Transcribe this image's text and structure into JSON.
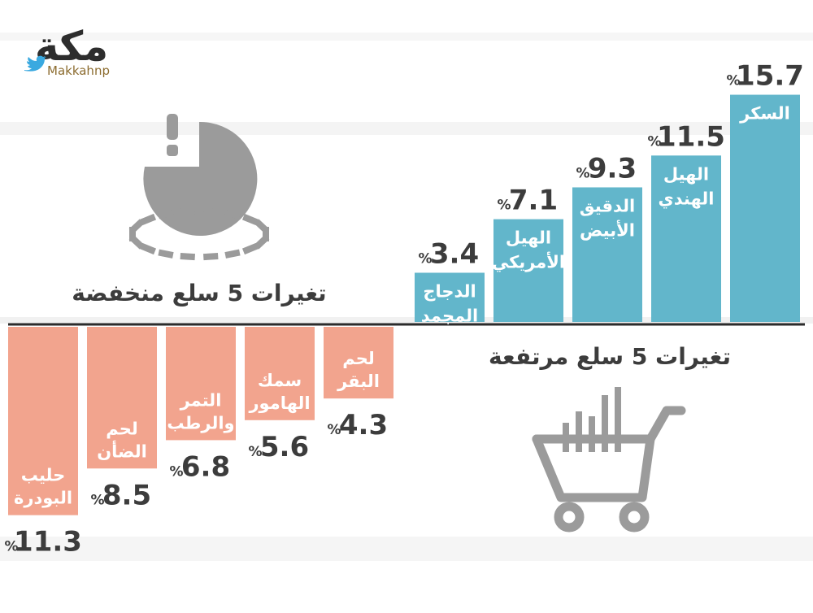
{
  "logo": {
    "wordmark": "مكة",
    "handle": "Makkahnp",
    "handle_icon": "twitter-bird-icon"
  },
  "colors": {
    "increase": "#62b6cb",
    "decrease": "#f2a48e",
    "icon_gray": "#9b9b9b",
    "text": "#3c3c3c",
    "stripe": "#efefef"
  },
  "icons": {
    "increase_icon": "shopping-cart-icon",
    "decrease_icon": "pie-warning-icon"
  },
  "chart_data": [
    {
      "type": "bar",
      "title": "تغيرات 5 سلع مرتفعة",
      "direction": "up",
      "unit": "%",
      "categories": [
        "الدجاج المجمد",
        "الهيل الأمريكي",
        "الدقيق الأبيض",
        "الهيل الهندي",
        "السكر"
      ],
      "category_lines": [
        [
          "الدجاج",
          "المجمد"
        ],
        [
          "الهيل",
          "الأمريكي"
        ],
        [
          "الدقيق",
          "الأبيض"
        ],
        [
          "الهيل",
          "الهندي"
        ],
        [
          "السكر"
        ]
      ],
      "values": [
        3.4,
        7.1,
        9.3,
        11.5,
        15.7
      ],
      "value_labels": [
        "3.4",
        "7.1",
        "9.3",
        "11.5",
        "15.7"
      ]
    },
    {
      "type": "bar",
      "title": "تغيرات 5 سلع منخفضة",
      "direction": "down",
      "unit": "%",
      "categories": [
        "حليب البودرة",
        "لحم الضأن",
        "التمر والرطب",
        "سمك الهامور",
        "لحم البقر"
      ],
      "category_lines": [
        [
          "حليب",
          "البودرة"
        ],
        [
          "لحم",
          "الضأن"
        ],
        [
          "التمر",
          "والرطب"
        ],
        [
          "سمك",
          "الهامور"
        ],
        [
          "لحم",
          "البقر"
        ]
      ],
      "values": [
        11.3,
        8.5,
        6.8,
        5.6,
        4.3
      ],
      "value_labels": [
        "11.3",
        "8.5",
        "6.8",
        "5.6",
        "4.3"
      ]
    }
  ]
}
